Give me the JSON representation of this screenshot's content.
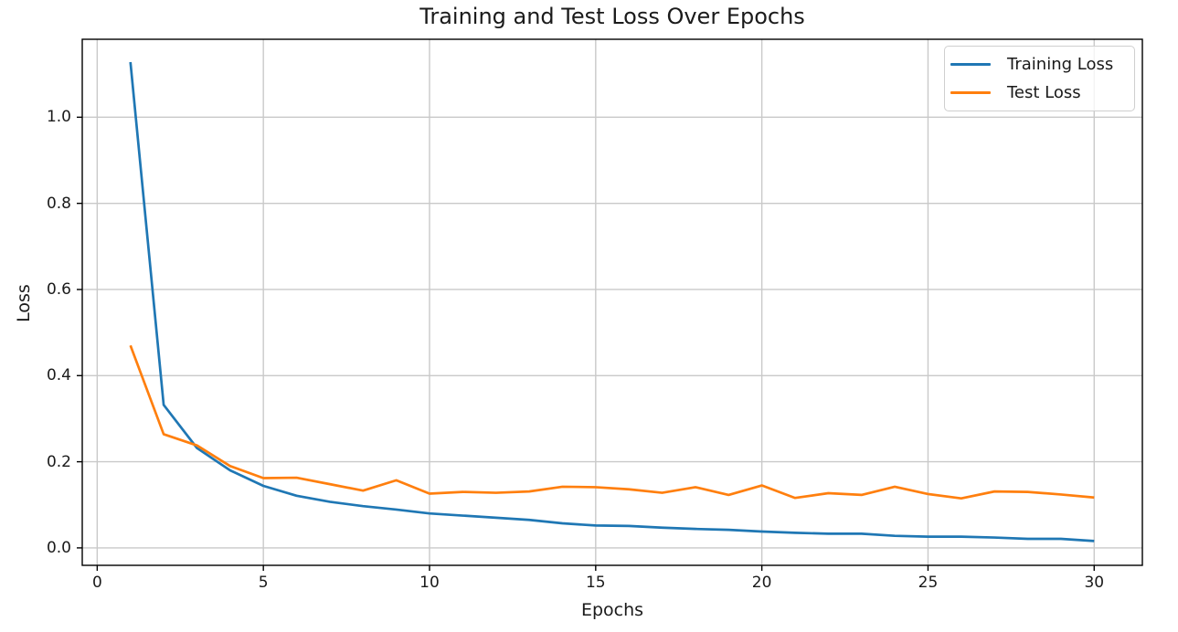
{
  "chart_data": {
    "type": "line",
    "title": "Training and Test Loss Over Epochs",
    "xlabel": "Epochs",
    "ylabel": "Loss",
    "x": [
      1,
      2,
      3,
      4,
      5,
      6,
      7,
      8,
      9,
      10,
      11,
      12,
      13,
      14,
      15,
      16,
      17,
      18,
      19,
      20,
      21,
      22,
      23,
      24,
      25,
      26,
      27,
      28,
      29,
      30
    ],
    "series": [
      {
        "name": "Training Loss",
        "color": "#1f77b4",
        "values": [
          1.128,
          0.332,
          0.232,
          0.18,
          0.144,
          0.121,
          0.107,
          0.097,
          0.089,
          0.08,
          0.075,
          0.07,
          0.065,
          0.057,
          0.052,
          0.051,
          0.047,
          0.044,
          0.042,
          0.038,
          0.035,
          0.033,
          0.033,
          0.028,
          0.026,
          0.026,
          0.024,
          0.021,
          0.021,
          0.016
        ]
      },
      {
        "name": "Test Loss",
        "color": "#ff7f0e",
        "values": [
          0.47,
          0.264,
          0.238,
          0.19,
          0.162,
          0.163,
          0.148,
          0.133,
          0.157,
          0.126,
          0.13,
          0.128,
          0.131,
          0.142,
          0.141,
          0.136,
          0.128,
          0.141,
          0.123,
          0.145,
          0.116,
          0.127,
          0.123,
          0.142,
          0.125,
          0.115,
          0.131,
          0.13,
          0.124,
          0.117
        ]
      }
    ],
    "xticks": {
      "values": [
        0,
        5,
        10,
        15,
        20,
        25,
        30
      ],
      "labels": [
        "0",
        "5",
        "10",
        "15",
        "20",
        "25",
        "30"
      ]
    },
    "yticks": {
      "values": [
        0.0,
        0.2,
        0.4,
        0.6,
        0.8,
        1.0
      ],
      "labels": [
        "0.0",
        "0.2",
        "0.4",
        "0.6",
        "0.8",
        "1.0"
      ]
    },
    "xlim": [
      -0.45,
      31.45
    ],
    "ylim": [
      -0.0405,
      1.181
    ],
    "grid": true,
    "legend": {
      "position": "upper right",
      "entries": [
        "Training Loss",
        "Test Loss"
      ]
    }
  },
  "colors": {
    "background": "#ffffff",
    "grid": "#c9c9c9",
    "spine": "#000000",
    "tick": "#000000",
    "text": "#1a1a1a",
    "legend_border": "#cfcfcf",
    "training_loss": "#1f77b4",
    "test_loss": "#ff7f0e"
  }
}
